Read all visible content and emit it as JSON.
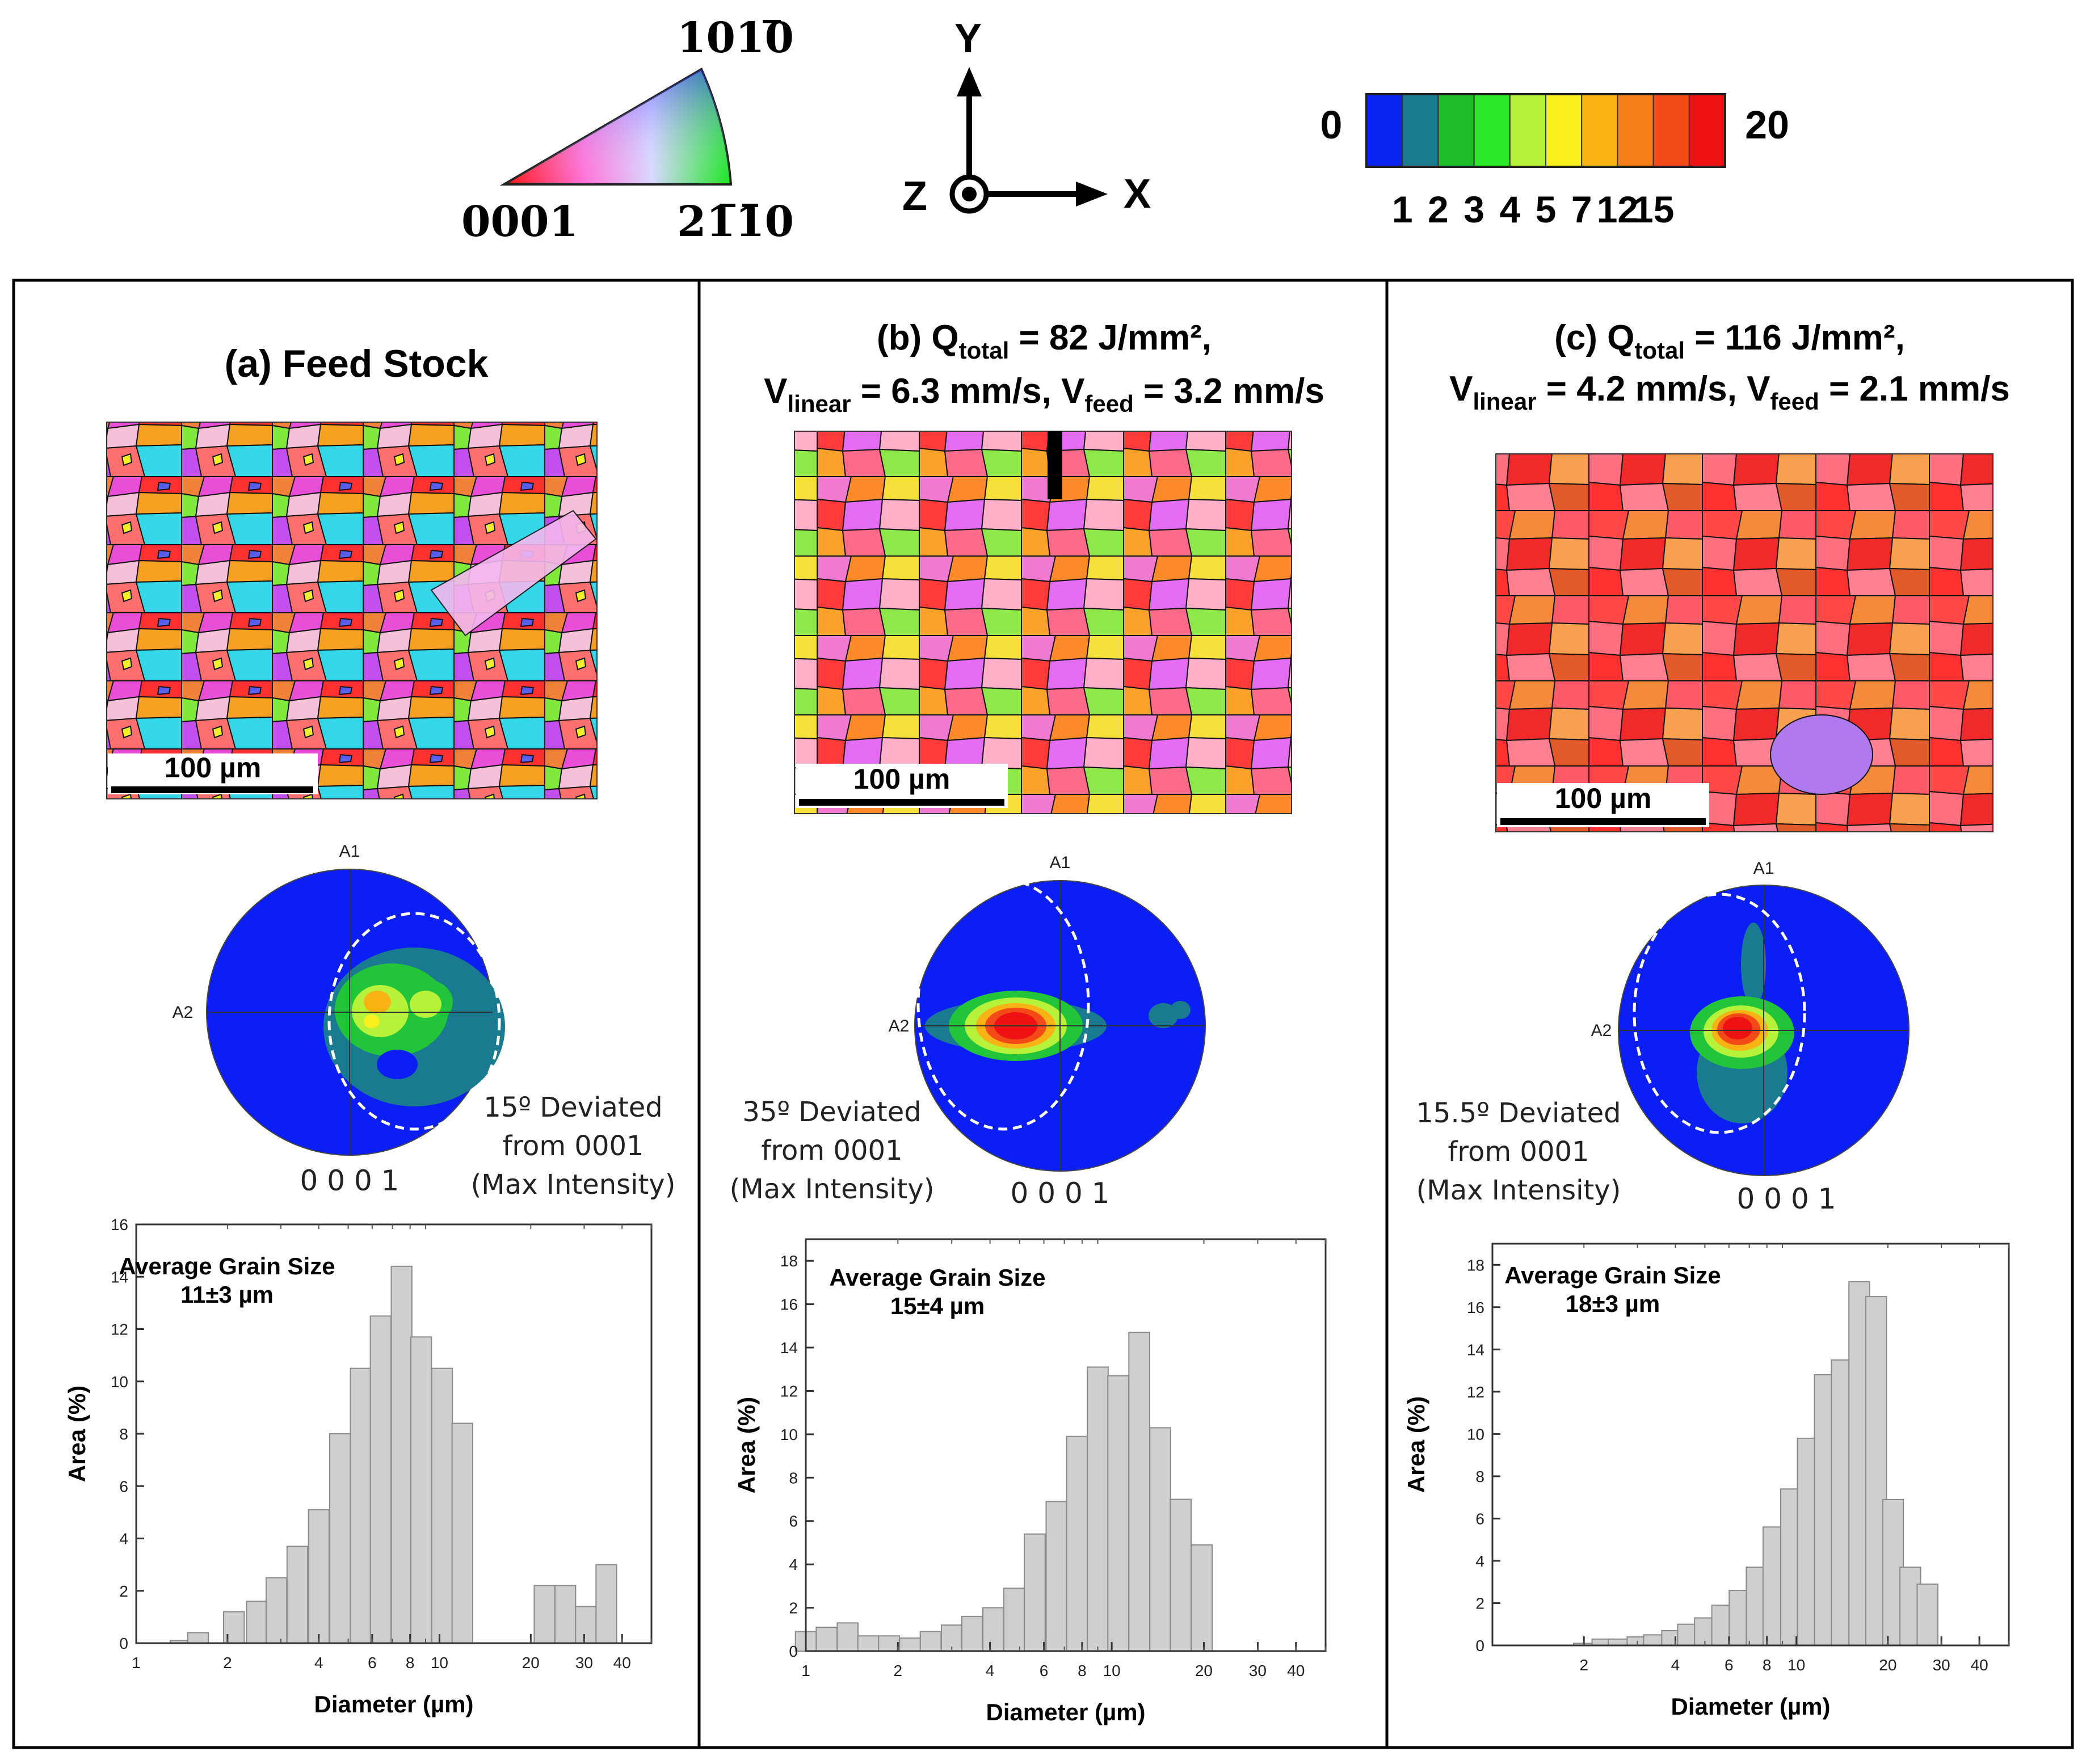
{
  "legend": {
    "ipf": {
      "top": "1010",
      "left": "0001",
      "right": "2110"
    },
    "axes": {
      "y": "Y",
      "z": "Z",
      "x": "X"
    },
    "colorbar": {
      "min": "0",
      "max": "20",
      "ticks": [
        "1",
        "2",
        "3",
        "4",
        "5",
        "7",
        "12",
        "15"
      ],
      "colors": [
        "#0a24f0",
        "#1a7a90",
        "#1dbd2a",
        "#2ee82a",
        "#b6f23a",
        "#f8ef1c",
        "#f9b314",
        "#f67e16",
        "#f44a18",
        "#ef1212"
      ]
    }
  },
  "panels": [
    {
      "title_parts": [
        "(a) Feed Stock"
      ],
      "scale_bar": "100 µm",
      "pole_figure": {
        "a1": "A1",
        "a2": "A2",
        "label": "0 0 0 1",
        "deviation": [
          "15º Deviated",
          "from 0001",
          "(Max Intensity)"
        ]
      },
      "histogram": {
        "annotation_title": "Average Grain Size",
        "annotation_value": "11±3 µm",
        "xlabel": "Diameter (µm)",
        "ylabel": "Area (%)"
      }
    },
    {
      "title_line1": {
        "pre": "(b) Q",
        "sub": "total",
        "post": " = 82 J/mm², "
      },
      "title_line2": {
        "a": "V",
        "a_sub": "linear",
        "b": " = 6.3 mm/s, V",
        "b_sub": "feed",
        "c": " = 3.2 mm/s"
      },
      "scale_bar": "100 µm",
      "pole_figure": {
        "a1": "A1",
        "a2": "A2",
        "label": "0 0 0 1",
        "deviation": [
          "35º Deviated",
          "from 0001",
          "(Max Intensity)"
        ]
      },
      "histogram": {
        "annotation_title": "Average Grain Size",
        "annotation_value": "15±4 µm",
        "xlabel": "Diameter (µm)",
        "ylabel": "Area (%)"
      }
    },
    {
      "title_line1": {
        "pre": "(c) Q",
        "sub": "total",
        "post": " = 116 J/mm², "
      },
      "title_line2": {
        "a": "V",
        "a_sub": "linear",
        "b": " = 4.2 mm/s, V",
        "b_sub": "feed",
        "c": " = 2.1 mm/s"
      },
      "scale_bar": "100 µm",
      "pole_figure": {
        "a1": "A1",
        "a2": "A2",
        "label": "0 0 0 1",
        "deviation": [
          "15.5º Deviated",
          "from 0001",
          "(Max Intensity)"
        ]
      },
      "histogram": {
        "annotation_title": "Average Grain Size",
        "annotation_value": "18±3 µm",
        "xlabel": "Diameter (µm)",
        "ylabel": "Area (%)"
      }
    }
  ],
  "chart_data": [
    {
      "type": "bar",
      "xscale": "log",
      "xlim": [
        1,
        50
      ],
      "ylim": [
        0,
        16
      ],
      "yticks": [
        0,
        2,
        4,
        6,
        8,
        10,
        12,
        14,
        16
      ],
      "xticks": [
        1,
        2,
        4,
        6,
        8,
        10,
        20,
        30,
        40
      ],
      "xlabel": "Diameter (µm)",
      "ylabel": "Area (%)",
      "x": [
        1.4,
        1.6,
        1.8,
        2.1,
        2.5,
        2.9,
        3.4,
        4.0,
        4.7,
        5.5,
        6.4,
        7.5,
        8.7,
        10.2,
        11.9,
        13.9,
        16.3,
        19.0,
        22.2,
        26.0,
        30.4,
        35.5,
        41.5
      ],
      "values": [
        0.1,
        0.4,
        0,
        1.2,
        1.6,
        2.5,
        3.7,
        5.1,
        8.0,
        10.5,
        12.5,
        14.4,
        11.7,
        10.5,
        8.4,
        0,
        0,
        0,
        2.2,
        2.2,
        1.4,
        3.0,
        0
      ]
    },
    {
      "type": "bar",
      "xscale": "log",
      "xlim": [
        1,
        50
      ],
      "ylim": [
        0,
        19
      ],
      "yticks": [
        0,
        2,
        4,
        6,
        8,
        10,
        12,
        14,
        16,
        18
      ],
      "xticks": [
        1,
        2,
        4,
        6,
        8,
        10,
        20,
        30,
        40
      ],
      "xlabel": "Diameter (µm)",
      "ylabel": "Area (%)",
      "x": [
        1.0,
        1.17,
        1.37,
        1.6,
        1.87,
        2.19,
        2.56,
        3.0,
        3.5,
        4.1,
        4.8,
        5.6,
        6.6,
        7.7,
        9.0,
        10.5,
        12.3,
        14.4,
        16.8,
        19.7,
        23.0,
        26.9,
        31.5,
        36.8
      ],
      "values": [
        0.9,
        1.1,
        1.3,
        0.7,
        0.7,
        0.6,
        0.9,
        1.2,
        1.6,
        2.0,
        2.9,
        5.4,
        6.9,
        9.9,
        13.1,
        12.7,
        14.7,
        10.3,
        7.0,
        4.9,
        0,
        0,
        0,
        0
      ]
    },
    {
      "type": "bar",
      "xscale": "log",
      "xlim": [
        1,
        50
      ],
      "ylim": [
        0,
        19
      ],
      "yticks": [
        0,
        2,
        4,
        6,
        8,
        10,
        12,
        14,
        16,
        18
      ],
      "xticks": [
        2,
        4,
        6,
        8,
        10,
        20,
        30,
        40
      ],
      "xlabel": "Diameter (µm)",
      "ylabel": "Area (%)",
      "x": [
        2.0,
        2.3,
        2.6,
        3.0,
        3.4,
        3.9,
        4.4,
        5.0,
        5.7,
        6.5,
        7.4,
        8.4,
        9.6,
        10.9,
        12.4,
        14.1,
        16.1,
        18.3,
        20.8,
        23.7,
        27.0,
        30.7,
        35.0
      ],
      "values": [
        0.1,
        0.3,
        0.3,
        0.4,
        0.5,
        0.7,
        1.0,
        1.3,
        1.9,
        2.6,
        3.7,
        5.6,
        7.4,
        9.8,
        12.8,
        13.5,
        17.2,
        16.5,
        6.9,
        3.7,
        2.9,
        0,
        0
      ]
    }
  ]
}
